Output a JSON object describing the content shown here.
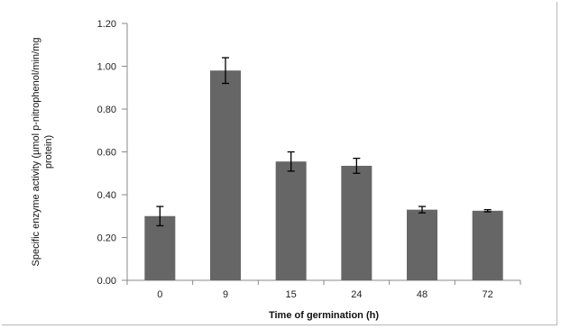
{
  "chart_data": {
    "type": "bar",
    "title": "",
    "xlabel": "Time of germination (h)",
    "ylabel": "Specific enzyme activity (µmol p-nitrophenol/min/mg protein)",
    "ylabel_lines": [
      "Specific enzyme activity (µmol p-nitrophenol/min/mg",
      "protein)"
    ],
    "categories": [
      "0",
      "9",
      "15",
      "24",
      "48",
      "72"
    ],
    "values": [
      0.3,
      0.98,
      0.555,
      0.535,
      0.33,
      0.325
    ],
    "errors": [
      0.045,
      0.06,
      0.045,
      0.035,
      0.015,
      0.005
    ],
    "ylim": [
      0,
      1.2
    ],
    "yticks": [
      0.0,
      0.2,
      0.4,
      0.6,
      0.8,
      1.0,
      1.2
    ],
    "ytick_labels": [
      "0.00",
      "0.20",
      "0.40",
      "0.60",
      "0.80",
      "1.00",
      "1.20"
    ],
    "grid": false,
    "legend": "none",
    "bar_color": "#666666",
    "error_color": "#000000"
  }
}
